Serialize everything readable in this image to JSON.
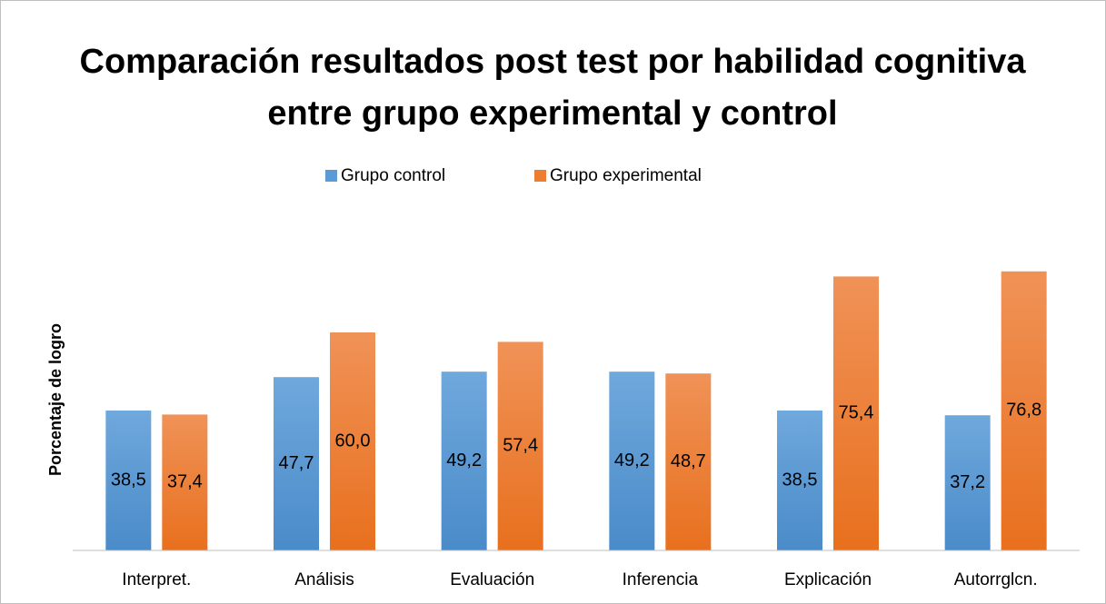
{
  "chart_data": {
    "type": "bar",
    "title": "Comparación resultados post test por habilidad cognitiva entre grupo experimental y control",
    "y_label": "Porcentaje de logro",
    "categories": [
      "Interpret.",
      "Análisis",
      "Evaluación",
      "Inferencia",
      "Explicación",
      "Autorrglcn."
    ],
    "series": [
      {
        "name": "Grupo control",
        "color": "#5b9bd5",
        "values": [
          38.5,
          47.7,
          49.2,
          49.2,
          38.5,
          37.2
        ],
        "value_labels": [
          "38,5",
          "47,7",
          "49,2",
          "49,2",
          "38,5",
          "37,2"
        ]
      },
      {
        "name": "Grupo experimental",
        "color": "#ed7d31",
        "values": [
          37.4,
          60.0,
          57.4,
          48.7,
          75.4,
          76.8
        ],
        "value_labels": [
          "37,4",
          "60,0",
          "57,4",
          "48,7",
          "75,4",
          "76,8"
        ]
      }
    ],
    "ylim": [
      0,
      90
    ],
    "legend": "top",
    "grid": false
  }
}
